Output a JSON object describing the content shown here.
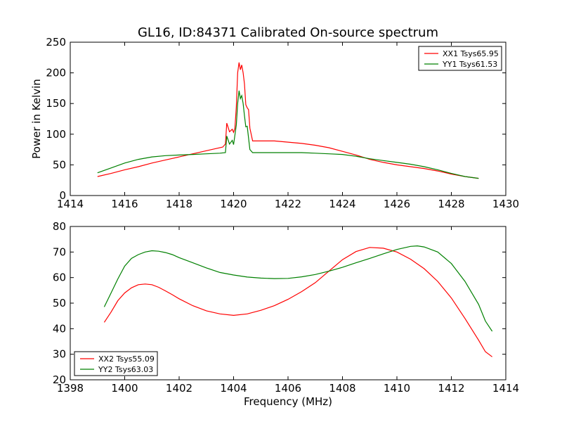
{
  "chart_data": [
    {
      "type": "line",
      "title": "GL16, ID:84371 Calibrated On-source spectrum",
      "xlabel": "",
      "ylabel": "Power in Kelvin",
      "xlim": [
        1414,
        1430
      ],
      "ylim": [
        0,
        250
      ],
      "xticks": [
        1414,
        1416,
        1418,
        1420,
        1422,
        1424,
        1426,
        1428,
        1430
      ],
      "yticks": [
        0,
        50,
        100,
        150,
        200,
        250
      ],
      "legend_position": "top-right",
      "grid": false,
      "series": [
        {
          "name": "XX1 Tsys65.95",
          "color": "#ff0000",
          "points": [
            [
              1415.0,
              31
            ],
            [
              1415.5,
              36
            ],
            [
              1416.0,
              42
            ],
            [
              1416.5,
              47
            ],
            [
              1417.0,
              53
            ],
            [
              1417.5,
              58
            ],
            [
              1418.0,
              63
            ],
            [
              1418.5,
              68
            ],
            [
              1419.0,
              73
            ],
            [
              1419.3,
              76
            ],
            [
              1419.6,
              79
            ],
            [
              1419.7,
              84
            ],
            [
              1419.75,
              118
            ],
            [
              1419.85,
              104
            ],
            [
              1419.95,
              108
            ],
            [
              1420.0,
              103
            ],
            [
              1420.05,
              110
            ],
            [
              1420.1,
              145
            ],
            [
              1420.15,
              200
            ],
            [
              1420.2,
              217
            ],
            [
              1420.25,
              205
            ],
            [
              1420.3,
              213
            ],
            [
              1420.35,
              200
            ],
            [
              1420.4,
              182
            ],
            [
              1420.45,
              148
            ],
            [
              1420.5,
              143
            ],
            [
              1420.55,
              140
            ],
            [
              1420.6,
              110
            ],
            [
              1420.7,
              89
            ],
            [
              1421.0,
              89
            ],
            [
              1421.5,
              89
            ],
            [
              1422.0,
              87
            ],
            [
              1422.5,
              85
            ],
            [
              1423.0,
              82
            ],
            [
              1423.5,
              78
            ],
            [
              1424.0,
              72
            ],
            [
              1424.5,
              66
            ],
            [
              1425.0,
              59
            ],
            [
              1425.5,
              54
            ],
            [
              1426.0,
              50
            ],
            [
              1426.5,
              47
            ],
            [
              1427.0,
              44
            ],
            [
              1427.5,
              40
            ],
            [
              1428.0,
              35
            ],
            [
              1428.5,
              31
            ],
            [
              1429.0,
              28
            ]
          ]
        },
        {
          "name": "YY1 Tsys61.53",
          "color": "#008000",
          "points": [
            [
              1415.0,
              37
            ],
            [
              1415.5,
              45
            ],
            [
              1416.0,
              53
            ],
            [
              1416.5,
              59
            ],
            [
              1417.0,
              63
            ],
            [
              1417.5,
              65
            ],
            [
              1418.0,
              66
            ],
            [
              1418.5,
              67
            ],
            [
              1419.0,
              68
            ],
            [
              1419.5,
              69
            ],
            [
              1419.7,
              70
            ],
            [
              1419.75,
              97
            ],
            [
              1419.85,
              84
            ],
            [
              1419.95,
              90
            ],
            [
              1420.0,
              83
            ],
            [
              1420.1,
              115
            ],
            [
              1420.15,
              150
            ],
            [
              1420.2,
              171
            ],
            [
              1420.25,
              158
            ],
            [
              1420.3,
              163
            ],
            [
              1420.35,
              150
            ],
            [
              1420.4,
              130
            ],
            [
              1420.45,
              112
            ],
            [
              1420.5,
              113
            ],
            [
              1420.6,
              75
            ],
            [
              1420.7,
              70
            ],
            [
              1421.0,
              70
            ],
            [
              1421.5,
              70
            ],
            [
              1422.0,
              70
            ],
            [
              1422.5,
              70
            ],
            [
              1423.0,
              69
            ],
            [
              1423.5,
              68
            ],
            [
              1424.0,
              67
            ],
            [
              1424.5,
              64
            ],
            [
              1425.0,
              60
            ],
            [
              1425.5,
              57
            ],
            [
              1426.0,
              54
            ],
            [
              1426.5,
              51
            ],
            [
              1427.0,
              47
            ],
            [
              1427.5,
              42
            ],
            [
              1428.0,
              36
            ],
            [
              1428.5,
              31
            ],
            [
              1429.0,
              28
            ]
          ]
        }
      ]
    },
    {
      "type": "line",
      "title": "",
      "xlabel": "Frequency (MHz)",
      "ylabel": "",
      "xlim": [
        1398,
        1414
      ],
      "ylim": [
        20,
        80
      ],
      "xticks": [
        1398,
        1400,
        1402,
        1404,
        1406,
        1408,
        1410,
        1412,
        1414
      ],
      "yticks": [
        20,
        30,
        40,
        50,
        60,
        70,
        80
      ],
      "legend_position": "bottom-left",
      "grid": false,
      "series": [
        {
          "name": "XX2 Tsys55.09",
          "color": "#ff0000",
          "points": [
            [
              1399.25,
              42.5
            ],
            [
              1399.5,
              46.5
            ],
            [
              1399.75,
              51
            ],
            [
              1400.0,
              54
            ],
            [
              1400.25,
              56
            ],
            [
              1400.5,
              57.2
            ],
            [
              1400.75,
              57.5
            ],
            [
              1401.0,
              57.2
            ],
            [
              1401.25,
              56.2
            ],
            [
              1401.5,
              54.8
            ],
            [
              1401.75,
              53.3
            ],
            [
              1402.0,
              51.7
            ],
            [
              1402.5,
              49
            ],
            [
              1403.0,
              47
            ],
            [
              1403.5,
              45.8
            ],
            [
              1404.0,
              45.2
            ],
            [
              1404.5,
              45.8
            ],
            [
              1405.0,
              47.2
            ],
            [
              1405.5,
              49
            ],
            [
              1406.0,
              51.5
            ],
            [
              1406.5,
              54.5
            ],
            [
              1407.0,
              58
            ],
            [
              1407.5,
              62.5
            ],
            [
              1408.0,
              67
            ],
            [
              1408.5,
              70.2
            ],
            [
              1409.0,
              71.8
            ],
            [
              1409.5,
              71.5
            ],
            [
              1410.0,
              70
            ],
            [
              1410.5,
              67.2
            ],
            [
              1411.0,
              63.5
            ],
            [
              1411.5,
              58.5
            ],
            [
              1412.0,
              52
            ],
            [
              1412.5,
              44
            ],
            [
              1413.0,
              35.5
            ],
            [
              1413.25,
              31
            ],
            [
              1413.5,
              29
            ]
          ]
        },
        {
          "name": "YY2 Tsys63.03",
          "color": "#008000",
          "points": [
            [
              1399.25,
              48.5
            ],
            [
              1399.5,
              54
            ],
            [
              1399.75,
              59.5
            ],
            [
              1400.0,
              64.5
            ],
            [
              1400.25,
              67.5
            ],
            [
              1400.5,
              69
            ],
            [
              1400.75,
              70
            ],
            [
              1401.0,
              70.5
            ],
            [
              1401.25,
              70.3
            ],
            [
              1401.5,
              69.8
            ],
            [
              1401.75,
              69
            ],
            [
              1402.0,
              67.8
            ],
            [
              1402.5,
              65.8
            ],
            [
              1403.0,
              63.8
            ],
            [
              1403.5,
              62
            ],
            [
              1404.0,
              61
            ],
            [
              1404.5,
              60.2
            ],
            [
              1405.0,
              59.8
            ],
            [
              1405.5,
              59.6
            ],
            [
              1406.0,
              59.7
            ],
            [
              1406.5,
              60.3
            ],
            [
              1407.0,
              61.2
            ],
            [
              1407.5,
              62.5
            ],
            [
              1408.0,
              64
            ],
            [
              1408.5,
              65.8
            ],
            [
              1409.0,
              67.5
            ],
            [
              1409.5,
              69.3
            ],
            [
              1410.0,
              71
            ],
            [
              1410.5,
              72.2
            ],
            [
              1410.75,
              72.4
            ],
            [
              1411.0,
              72
            ],
            [
              1411.5,
              70
            ],
            [
              1412.0,
              65.5
            ],
            [
              1412.5,
              58.5
            ],
            [
              1413.0,
              49.5
            ],
            [
              1413.25,
              43
            ],
            [
              1413.5,
              39
            ]
          ]
        }
      ]
    }
  ]
}
